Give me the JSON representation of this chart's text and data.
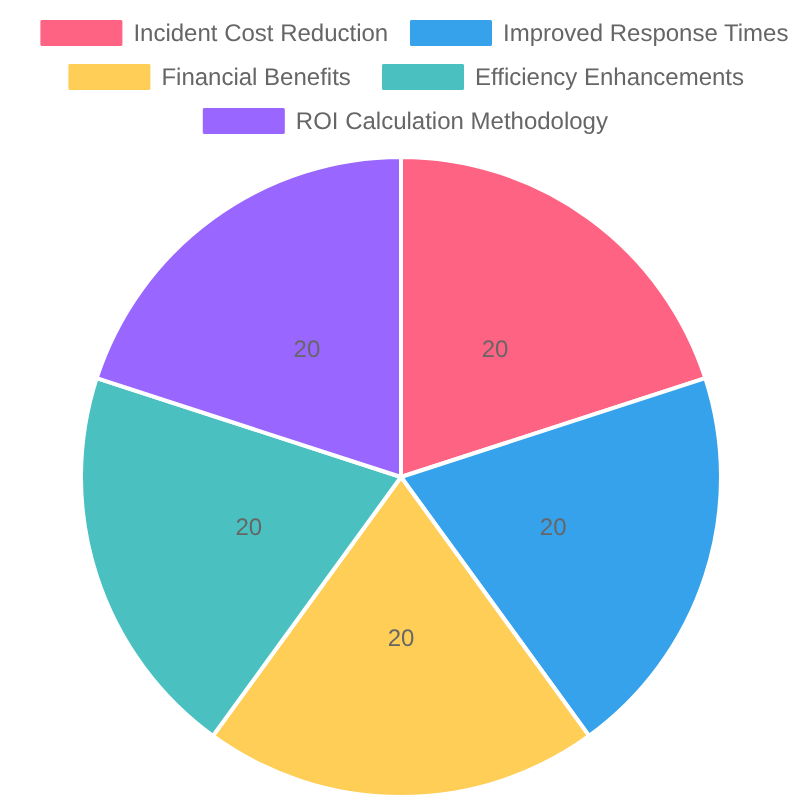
{
  "chart_data": {
    "type": "pie",
    "categories": [
      "Incident Cost Reduction",
      "Improved Response Times",
      "Financial Benefits",
      "Efficiency Enhancements",
      "ROI Calculation Methodology"
    ],
    "values": [
      20,
      20,
      20,
      20,
      20
    ],
    "colors": [
      "#ff6384",
      "#36a2eb",
      "#ffce56",
      "#4bc0c0",
      "#9966ff"
    ],
    "data_labels": true,
    "legend": "top"
  }
}
